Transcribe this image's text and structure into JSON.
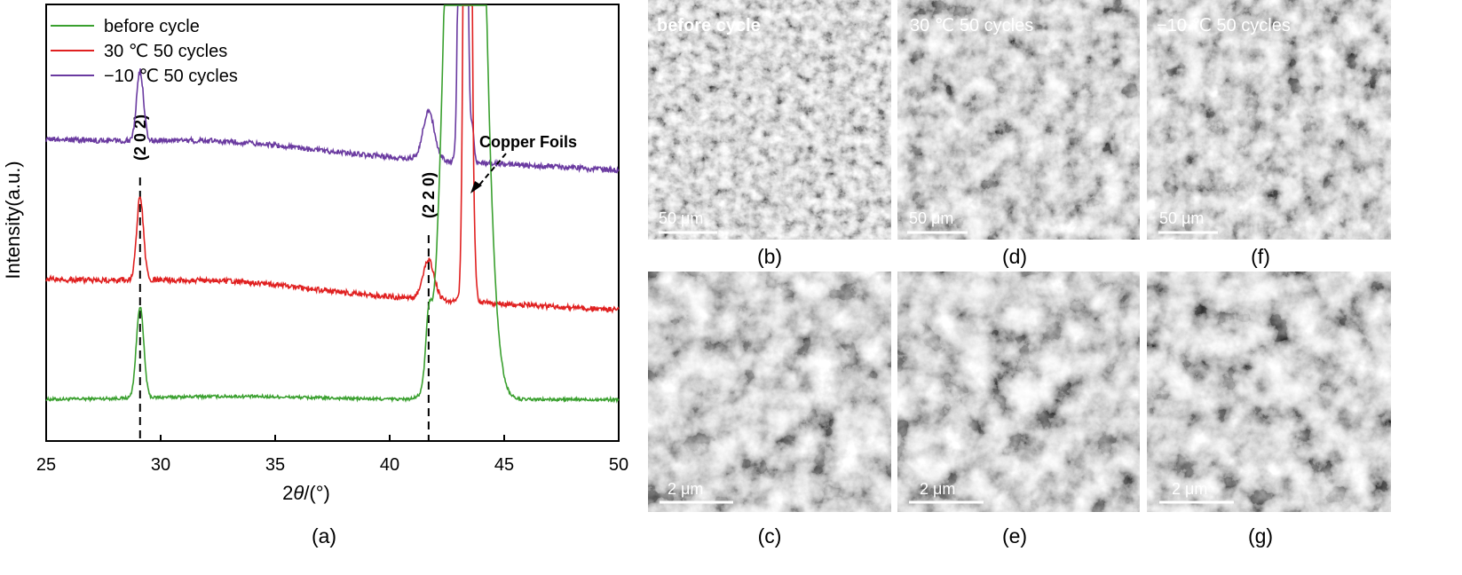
{
  "chart_data": {
    "type": "line",
    "xlabel_prefix": "2",
    "xlabel_symbol": "θ",
    "xlabel_suffix": "/(°)",
    "ylabel": "Intensity(a.u.)",
    "xlim": [
      25,
      50
    ],
    "xticks": [
      "25",
      "30",
      "35",
      "40",
      "45",
      "50"
    ],
    "legend_position": "top-left",
    "grid": false,
    "series": [
      {
        "name": "before cycle",
        "color": "#3aa02f",
        "baseline": 0.95,
        "noise": 0.035,
        "slope": 0.0,
        "peaks": [
          [
            29.1,
            0.16,
            2.1
          ],
          [
            41.7,
            0.13,
            1.3
          ],
          [
            43.3,
            0.6,
            30
          ],
          [
            43.7,
            0.1,
            0.2
          ],
          [
            48.5,
            0.22,
            0.0
          ]
        ]
      },
      {
        "name": "30 ℃ 50 cycles",
        "color": "#e02020",
        "baseline": 3.7,
        "noise": 0.06,
        "slope": -0.028,
        "peaks": [
          [
            29.1,
            0.15,
            1.9
          ],
          [
            41.7,
            0.25,
            0.9
          ],
          [
            43.4,
            0.12,
            30
          ],
          [
            43.7,
            0.08,
            0.7
          ]
        ]
      },
      {
        "name": "−10 ℃ 50 cycles",
        "color": "#6a3aa0",
        "baseline": 6.9,
        "noise": 0.06,
        "slope": -0.028,
        "peaks": [
          [
            29.1,
            0.15,
            1.6
          ],
          [
            41.7,
            0.25,
            1.1
          ],
          [
            43.2,
            0.12,
            30
          ],
          [
            43.6,
            0.08,
            0.8
          ]
        ]
      }
    ],
    "reference_lines": [
      {
        "x": 29.1,
        "label": "(2 0 2)"
      },
      {
        "x": 41.7,
        "label": "(2 2 0)"
      }
    ],
    "annotations": [
      {
        "text": "Copper Foils",
        "x": 43.4
      }
    ]
  },
  "panels": {
    "a": "(a)",
    "b": "(b)",
    "c": "(c)",
    "d": "(d)",
    "e": "(e)",
    "f": "(f)",
    "g": "(g)"
  },
  "sem": {
    "b": {
      "caption": "before cycle",
      "scale": "50 μm"
    },
    "d": {
      "caption": "30 ℃ 50 cycles",
      "scale": "50 μm"
    },
    "f": {
      "caption": "−10 ℃ 50 cycles",
      "scale": "50 μm"
    },
    "c": {
      "scale": "2 μm"
    },
    "e": {
      "scale": "2 μm"
    },
    "g": {
      "scale": "2 μm"
    }
  }
}
